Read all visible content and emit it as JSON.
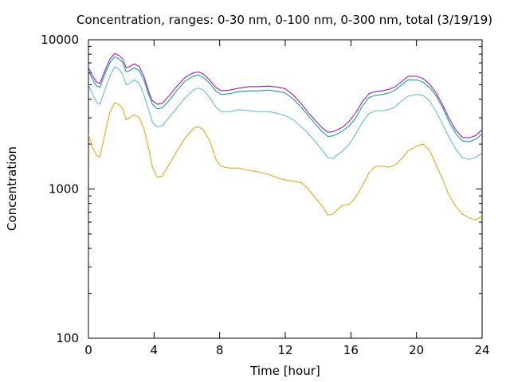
{
  "chart_data": {
    "type": "line",
    "title": "Concentration, ranges: 0-30 nm, 0-100 nm, 0-300 nm, total (3/19/19)",
    "xlabel": "Time [hour]",
    "ylabel": "Concentration",
    "xlim": [
      0,
      24
    ],
    "ylim": [
      100,
      10000
    ],
    "yscale": "log",
    "grid": false,
    "legend": "none",
    "x_ticks": [
      "0",
      "4",
      "8",
      "12",
      "16",
      "20",
      "24"
    ],
    "y_ticks": [
      "100",
      "1000",
      "10000"
    ],
    "series": [
      {
        "color": "#e69f00",
        "points": [
          [
            0,
            2300
          ],
          [
            0.3,
            1850
          ],
          [
            0.5,
            1680
          ],
          [
            0.7,
            1640
          ],
          [
            1.0,
            2350
          ],
          [
            1.3,
            3250
          ],
          [
            1.6,
            3800
          ],
          [
            1.9,
            3650
          ],
          [
            2.1,
            3450
          ],
          [
            2.3,
            2900
          ],
          [
            2.5,
            3000
          ],
          [
            2.8,
            3150
          ],
          [
            3.1,
            3000
          ],
          [
            3.4,
            2500
          ],
          [
            3.7,
            1800
          ],
          [
            3.9,
            1400
          ],
          [
            4.2,
            1200
          ],
          [
            4.5,
            1220
          ],
          [
            4.9,
            1450
          ],
          [
            5.4,
            1800
          ],
          [
            5.9,
            2200
          ],
          [
            6.4,
            2550
          ],
          [
            6.7,
            2620
          ],
          [
            7.0,
            2500
          ],
          [
            7.4,
            2100
          ],
          [
            7.8,
            1550
          ],
          [
            8.1,
            1420
          ],
          [
            8.6,
            1380
          ],
          [
            9.2,
            1380
          ],
          [
            9.8,
            1330
          ],
          [
            10.4,
            1300
          ],
          [
            11.0,
            1250
          ],
          [
            11.6,
            1180
          ],
          [
            12.0,
            1150
          ],
          [
            12.5,
            1130
          ],
          [
            13.0,
            1100
          ],
          [
            13.4,
            1000
          ],
          [
            13.8,
            880
          ],
          [
            14.2,
            780
          ],
          [
            14.6,
            670
          ],
          [
            14.9,
            680
          ],
          [
            15.2,
            730
          ],
          [
            15.5,
            780
          ],
          [
            15.9,
            790
          ],
          [
            16.3,
            880
          ],
          [
            16.7,
            1050
          ],
          [
            17.1,
            1280
          ],
          [
            17.5,
            1420
          ],
          [
            17.9,
            1420
          ],
          [
            18.3,
            1400
          ],
          [
            18.7,
            1450
          ],
          [
            19.1,
            1600
          ],
          [
            19.5,
            1800
          ],
          [
            20.0,
            1940
          ],
          [
            20.4,
            2000
          ],
          [
            20.8,
            1820
          ],
          [
            21.2,
            1450
          ],
          [
            21.6,
            1150
          ],
          [
            22.0,
            900
          ],
          [
            22.4,
            760
          ],
          [
            22.8,
            680
          ],
          [
            23.2,
            640
          ],
          [
            23.6,
            620
          ],
          [
            24,
            660
          ]
        ]
      },
      {
        "color": "#56b4e9",
        "points": [
          [
            0,
            5000
          ],
          [
            0.3,
            4200
          ],
          [
            0.5,
            3800
          ],
          [
            0.7,
            3700
          ],
          [
            1.0,
            4600
          ],
          [
            1.3,
            5700
          ],
          [
            1.6,
            6600
          ],
          [
            1.9,
            6300
          ],
          [
            2.1,
            5800
          ],
          [
            2.3,
            5000
          ],
          [
            2.5,
            5100
          ],
          [
            2.8,
            5400
          ],
          [
            3.1,
            5100
          ],
          [
            3.4,
            4200
          ],
          [
            3.7,
            3300
          ],
          [
            3.9,
            2800
          ],
          [
            4.2,
            2600
          ],
          [
            4.5,
            2650
          ],
          [
            4.9,
            3000
          ],
          [
            5.4,
            3500
          ],
          [
            5.9,
            4100
          ],
          [
            6.4,
            4600
          ],
          [
            6.7,
            4750
          ],
          [
            7.0,
            4600
          ],
          [
            7.4,
            4100
          ],
          [
            7.8,
            3500
          ],
          [
            8.1,
            3300
          ],
          [
            8.6,
            3300
          ],
          [
            9.2,
            3400
          ],
          [
            9.8,
            3350
          ],
          [
            10.4,
            3300
          ],
          [
            11.0,
            3300
          ],
          [
            11.6,
            3200
          ],
          [
            12.0,
            3100
          ],
          [
            12.5,
            2900
          ],
          [
            13.0,
            2600
          ],
          [
            13.4,
            2350
          ],
          [
            13.8,
            2100
          ],
          [
            14.2,
            1850
          ],
          [
            14.6,
            1620
          ],
          [
            14.9,
            1600
          ],
          [
            15.2,
            1700
          ],
          [
            15.5,
            1800
          ],
          [
            15.9,
            2000
          ],
          [
            16.3,
            2350
          ],
          [
            16.7,
            2800
          ],
          [
            17.1,
            3200
          ],
          [
            17.5,
            3350
          ],
          [
            17.9,
            3350
          ],
          [
            18.3,
            3400
          ],
          [
            18.7,
            3550
          ],
          [
            19.1,
            3900
          ],
          [
            19.5,
            4200
          ],
          [
            20.0,
            4300
          ],
          [
            20.4,
            4250
          ],
          [
            20.8,
            3900
          ],
          [
            21.2,
            3300
          ],
          [
            21.6,
            2700
          ],
          [
            22.0,
            2200
          ],
          [
            22.4,
            1850
          ],
          [
            22.8,
            1620
          ],
          [
            23.2,
            1580
          ],
          [
            23.6,
            1620
          ],
          [
            24,
            1750
          ]
        ]
      },
      {
        "color": "#009e73",
        "points": [
          [
            0,
            6200
          ],
          [
            0.3,
            5300
          ],
          [
            0.5,
            4900
          ],
          [
            0.7,
            4800
          ],
          [
            1.0,
            5900
          ],
          [
            1.3,
            7000
          ],
          [
            1.6,
            7700
          ],
          [
            1.9,
            7400
          ],
          [
            2.1,
            7000
          ],
          [
            2.3,
            6100
          ],
          [
            2.5,
            6200
          ],
          [
            2.8,
            6500
          ],
          [
            3.1,
            6200
          ],
          [
            3.4,
            5300
          ],
          [
            3.7,
            4200
          ],
          [
            3.9,
            3700
          ],
          [
            4.2,
            3450
          ],
          [
            4.5,
            3500
          ],
          [
            4.9,
            3900
          ],
          [
            5.4,
            4600
          ],
          [
            5.9,
            5300
          ],
          [
            6.4,
            5700
          ],
          [
            6.7,
            5800
          ],
          [
            7.0,
            5600
          ],
          [
            7.4,
            5100
          ],
          [
            7.8,
            4500
          ],
          [
            8.1,
            4300
          ],
          [
            8.6,
            4350
          ],
          [
            9.2,
            4500
          ],
          [
            9.8,
            4550
          ],
          [
            10.4,
            4550
          ],
          [
            11.0,
            4600
          ],
          [
            11.6,
            4500
          ],
          [
            12.0,
            4400
          ],
          [
            12.5,
            4000
          ],
          [
            13.0,
            3500
          ],
          [
            13.4,
            3100
          ],
          [
            13.8,
            2750
          ],
          [
            14.2,
            2450
          ],
          [
            14.6,
            2250
          ],
          [
            14.9,
            2270
          ],
          [
            15.2,
            2350
          ],
          [
            15.5,
            2450
          ],
          [
            15.9,
            2650
          ],
          [
            16.3,
            3000
          ],
          [
            16.7,
            3600
          ],
          [
            17.1,
            4100
          ],
          [
            17.5,
            4250
          ],
          [
            17.9,
            4300
          ],
          [
            18.3,
            4400
          ],
          [
            18.7,
            4600
          ],
          [
            19.1,
            5000
          ],
          [
            19.5,
            5400
          ],
          [
            20.0,
            5400
          ],
          [
            20.4,
            5200
          ],
          [
            20.8,
            4800
          ],
          [
            21.2,
            4200
          ],
          [
            21.6,
            3500
          ],
          [
            22.0,
            2800
          ],
          [
            22.4,
            2350
          ],
          [
            22.8,
            2100
          ],
          [
            23.2,
            2080
          ],
          [
            23.6,
            2150
          ],
          [
            24,
            2350
          ]
        ]
      },
      {
        "color": "#9400d3",
        "points": [
          [
            0,
            6500
          ],
          [
            0.3,
            5600
          ],
          [
            0.5,
            5200
          ],
          [
            0.7,
            5100
          ],
          [
            1.0,
            6200
          ],
          [
            1.3,
            7400
          ],
          [
            1.6,
            8100
          ],
          [
            1.9,
            7800
          ],
          [
            2.1,
            7400
          ],
          [
            2.3,
            6500
          ],
          [
            2.5,
            6600
          ],
          [
            2.8,
            6900
          ],
          [
            3.1,
            6600
          ],
          [
            3.4,
            5600
          ],
          [
            3.7,
            4400
          ],
          [
            3.9,
            3900
          ],
          [
            4.2,
            3700
          ],
          [
            4.5,
            3750
          ],
          [
            4.9,
            4200
          ],
          [
            5.4,
            4900
          ],
          [
            5.9,
            5600
          ],
          [
            6.4,
            6000
          ],
          [
            6.7,
            6100
          ],
          [
            7.0,
            5900
          ],
          [
            7.4,
            5350
          ],
          [
            7.8,
            4750
          ],
          [
            8.1,
            4550
          ],
          [
            8.6,
            4600
          ],
          [
            9.2,
            4750
          ],
          [
            9.8,
            4850
          ],
          [
            10.4,
            4850
          ],
          [
            11.0,
            4900
          ],
          [
            11.6,
            4800
          ],
          [
            12.0,
            4700
          ],
          [
            12.5,
            4250
          ],
          [
            13.0,
            3700
          ],
          [
            13.4,
            3250
          ],
          [
            13.8,
            2900
          ],
          [
            14.2,
            2600
          ],
          [
            14.6,
            2400
          ],
          [
            14.9,
            2420
          ],
          [
            15.2,
            2500
          ],
          [
            15.5,
            2600
          ],
          [
            15.9,
            2850
          ],
          [
            16.3,
            3250
          ],
          [
            16.7,
            3850
          ],
          [
            17.1,
            4350
          ],
          [
            17.5,
            4500
          ],
          [
            17.9,
            4550
          ],
          [
            18.3,
            4650
          ],
          [
            18.7,
            4850
          ],
          [
            19.1,
            5250
          ],
          [
            19.5,
            5700
          ],
          [
            20.0,
            5700
          ],
          [
            20.4,
            5500
          ],
          [
            20.8,
            5050
          ],
          [
            21.2,
            4400
          ],
          [
            21.6,
            3650
          ],
          [
            22.0,
            2950
          ],
          [
            22.4,
            2480
          ],
          [
            22.8,
            2220
          ],
          [
            23.2,
            2200
          ],
          [
            23.6,
            2280
          ],
          [
            24,
            2500
          ]
        ]
      }
    ]
  }
}
